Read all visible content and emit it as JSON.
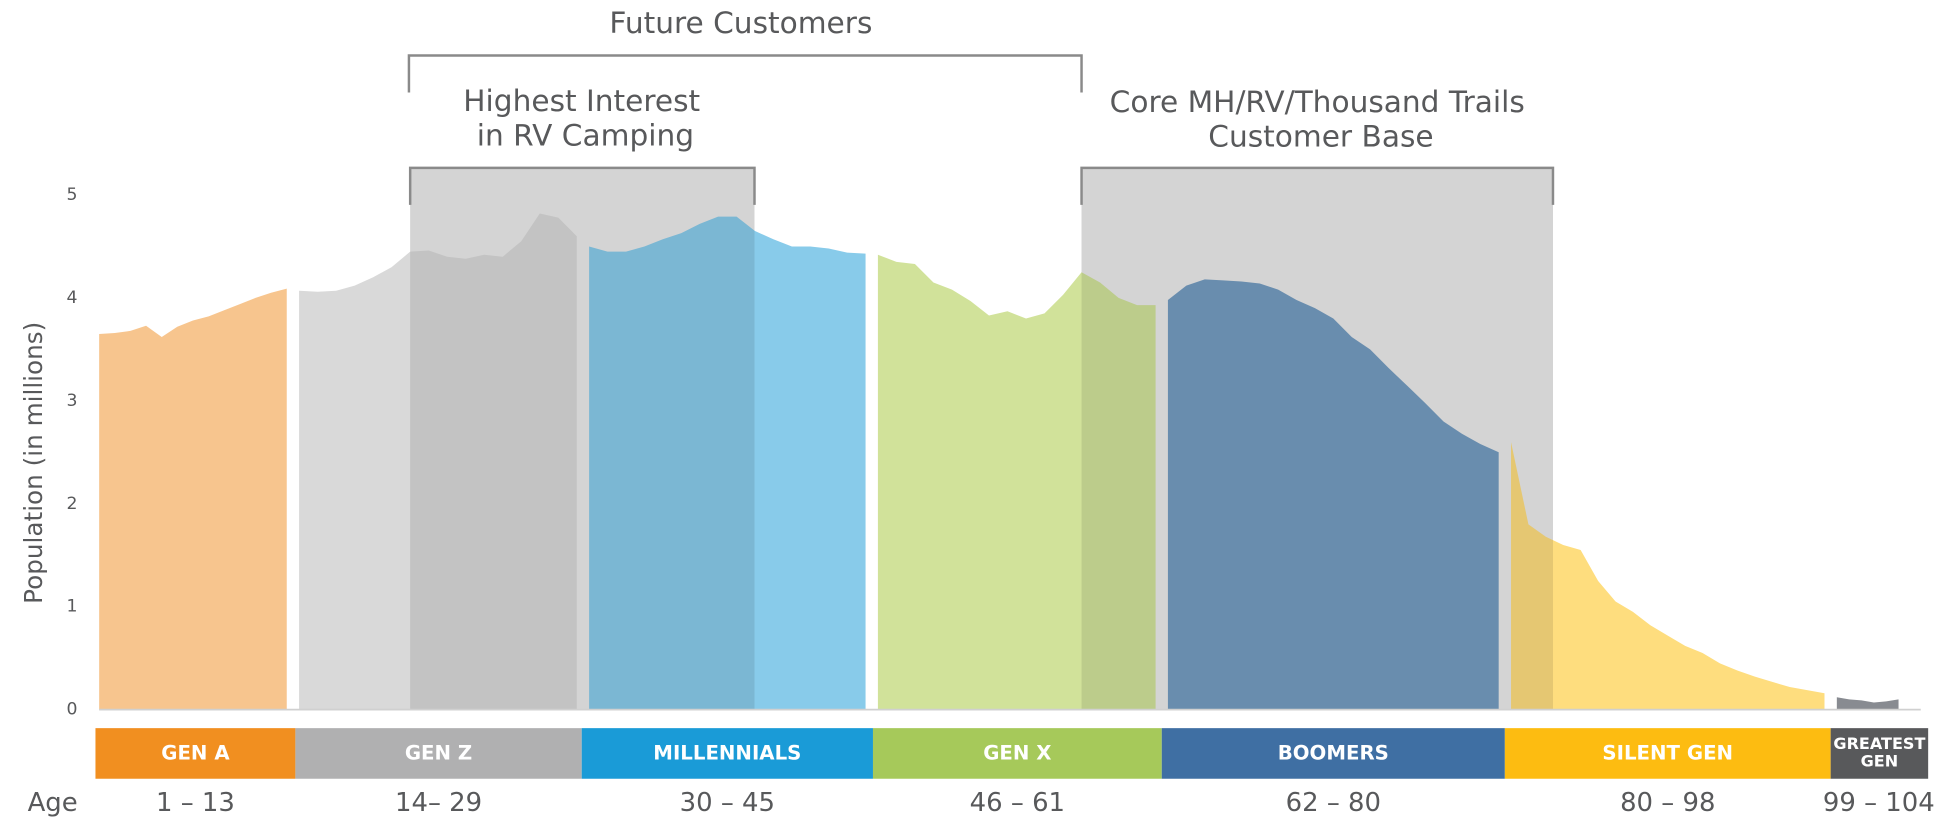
{
  "chart_data": {
    "type": "area",
    "ylabel": "Population (in millions)",
    "xlabel": "Age",
    "ylim": [
      0,
      5
    ],
    "yticks": [
      0,
      1,
      2,
      3,
      4,
      5
    ],
    "annotations": {
      "future": "Future Customers",
      "interest": [
        "Highest Interest",
        "in RV Camping"
      ],
      "core": [
        "Core MH/RV/Thousand Trails",
        "Customer Base"
      ]
    },
    "series": [
      {
        "name": "GEN A",
        "age_label": "1 – 13",
        "color": "#f7c58e",
        "bar_color": "#f18f20",
        "x": [
          1,
          2,
          3,
          4,
          5,
          6,
          7,
          8,
          9,
          10,
          11,
          12,
          13
        ],
        "values": [
          3.65,
          3.66,
          3.68,
          3.73,
          3.62,
          3.72,
          3.78,
          3.82,
          3.88,
          3.94,
          4.0,
          4.05,
          4.09
        ]
      },
      {
        "name": "GEN Z",
        "age_label": "14– 29",
        "color": "#d9d9d9",
        "bar_color": "#b0b0b1",
        "x": [
          14,
          15,
          16,
          17,
          18,
          19,
          20,
          21,
          22,
          23,
          24,
          25,
          26,
          27,
          28,
          29
        ],
        "values": [
          4.07,
          4.06,
          4.07,
          4.12,
          4.2,
          4.3,
          4.45,
          4.46,
          4.4,
          4.38,
          4.42,
          4.4,
          4.55,
          4.82,
          4.78,
          4.6
        ]
      },
      {
        "name": "MILLENNIALS",
        "age_label": "30 – 45",
        "color": "#88cbea",
        "bar_color": "#1a9bd7",
        "x": [
          30,
          31,
          32,
          33,
          34,
          35,
          36,
          37,
          38,
          39,
          40,
          41,
          42,
          43,
          44,
          45
        ],
        "values": [
          4.5,
          4.45,
          4.45,
          4.5,
          4.57,
          4.63,
          4.72,
          4.79,
          4.79,
          4.65,
          4.57,
          4.5,
          4.5,
          4.48,
          4.44,
          4.43
        ]
      },
      {
        "name": "GEN X",
        "age_label": "46 – 61",
        "color": "#d1e29a",
        "bar_color": "#a6c95a",
        "x": [
          46,
          47,
          48,
          49,
          50,
          51,
          52,
          53,
          54,
          55,
          56,
          57,
          58,
          59,
          60,
          61
        ],
        "values": [
          4.42,
          4.35,
          4.33,
          4.15,
          4.08,
          3.97,
          3.83,
          3.87,
          3.8,
          3.85,
          4.03,
          4.25,
          4.15,
          4.0,
          3.93,
          3.93
        ]
      },
      {
        "name": "BOOMERS",
        "age_label": "62 – 80",
        "color": "#749cc1",
        "bar_color": "#3f6fa3",
        "x": [
          62,
          63,
          64,
          65,
          66,
          67,
          68,
          69,
          70,
          71,
          72,
          73,
          74,
          75,
          76,
          77,
          78,
          79,
          80
        ],
        "values": [
          3.98,
          4.12,
          4.18,
          4.17,
          4.16,
          4.14,
          4.08,
          3.98,
          3.9,
          3.8,
          3.62,
          3.5,
          3.32,
          3.15,
          2.98,
          2.8,
          2.68,
          2.58,
          2.5
        ]
      },
      {
        "name": "SILENT GEN",
        "age_label": "80 – 98",
        "color": "#fedd7e",
        "bar_color": "#fdbc11",
        "x": [
          80,
          81,
          82,
          83,
          84,
          85,
          86,
          87,
          88,
          89,
          90,
          91,
          92,
          93,
          94,
          95,
          96,
          97,
          98
        ],
        "values": [
          2.6,
          1.8,
          1.68,
          1.6,
          1.55,
          1.25,
          1.05,
          0.95,
          0.82,
          0.72,
          0.62,
          0.55,
          0.45,
          0.38,
          0.32,
          0.27,
          0.22,
          0.19,
          0.16
        ]
      },
      {
        "name": "GREATEST GEN",
        "age_label": "99 – 104",
        "color": "#888b91",
        "bar_color": "#58595b",
        "x": [
          99,
          100,
          101,
          102,
          103,
          104
        ],
        "values": [
          0.12,
          0.1,
          0.09,
          0.07,
          0.08,
          0.1
        ]
      }
    ]
  }
}
